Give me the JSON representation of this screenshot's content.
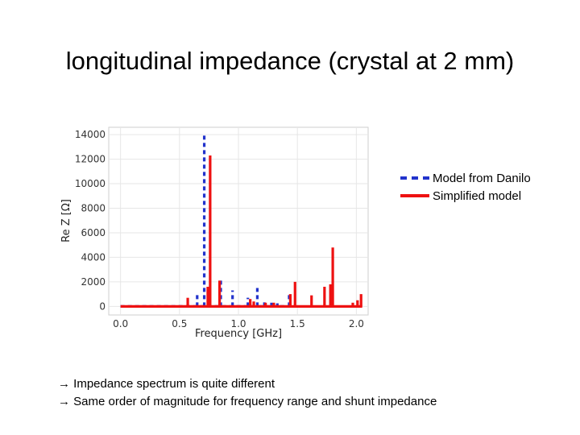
{
  "slide": {
    "title": "longitudinal impedance (crystal at 2 mm)"
  },
  "notes": [
    {
      "arrow": "→",
      "text": "Impedance spectrum is quite different"
    },
    {
      "arrow": "→",
      "text": "Same order of magnitude for frequency range and shunt impedance"
    }
  ],
  "colors": {
    "model_from_danilo": "#2233cc",
    "simplified_model": "#ee1111",
    "grid": "#e6e6e6"
  },
  "chart_data": {
    "type": "line",
    "title": "",
    "xlabel": "Frequency [GHz]",
    "ylabel": "Re Z [Ω]",
    "xlim": [
      -0.1,
      2.1
    ],
    "ylim": [
      -700,
      14600
    ],
    "x_ticks": [
      0.0,
      0.5,
      1.0,
      1.5,
      2.0
    ],
    "x_tick_labels": [
      "0.0",
      "0.5",
      "1.0",
      "1.5",
      "2.0"
    ],
    "y_ticks": [
      0,
      2000,
      4000,
      6000,
      8000,
      10000,
      12000,
      14000
    ],
    "y_tick_labels": [
      "0",
      "2000",
      "4000",
      "6000",
      "8000",
      "10000",
      "12000",
      "14000"
    ],
    "grid": true,
    "legend_position": "right-outside",
    "series": [
      {
        "name": "Model from Danilo",
        "style": "dashed",
        "baseline": 0,
        "peaks": [
          {
            "x": 0.65,
            "y": 1000
          },
          {
            "x": 0.71,
            "y": 14000
          },
          {
            "x": 0.85,
            "y": 2100
          },
          {
            "x": 0.95,
            "y": 1300
          },
          {
            "x": 1.08,
            "y": 700
          },
          {
            "x": 1.16,
            "y": 1500
          },
          {
            "x": 1.22,
            "y": 400
          },
          {
            "x": 1.28,
            "y": 300
          },
          {
            "x": 1.33,
            "y": 250
          },
          {
            "x": 1.43,
            "y": 1000
          }
        ]
      },
      {
        "name": "Simplified model",
        "style": "solid",
        "baseline": 0,
        "peaks": [
          {
            "x": 0.57,
            "y": 700
          },
          {
            "x": 0.74,
            "y": 1600
          },
          {
            "x": 0.76,
            "y": 12300
          },
          {
            "x": 0.84,
            "y": 2100
          },
          {
            "x": 1.1,
            "y": 600
          },
          {
            "x": 1.13,
            "y": 400
          },
          {
            "x": 1.23,
            "y": 300
          },
          {
            "x": 1.3,
            "y": 300
          },
          {
            "x": 1.44,
            "y": 1000
          },
          {
            "x": 1.48,
            "y": 2000
          },
          {
            "x": 1.62,
            "y": 900
          },
          {
            "x": 1.73,
            "y": 1600
          },
          {
            "x": 1.78,
            "y": 1800
          },
          {
            "x": 1.8,
            "y": 4800
          },
          {
            "x": 1.97,
            "y": 300
          },
          {
            "x": 2.01,
            "y": 500
          },
          {
            "x": 2.04,
            "y": 1000
          }
        ]
      }
    ]
  }
}
